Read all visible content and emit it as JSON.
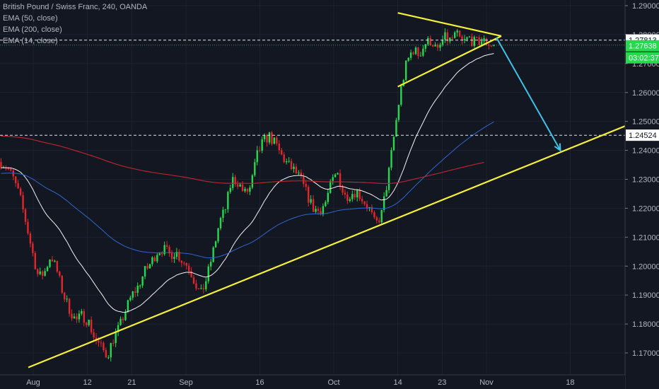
{
  "chart_data": {
    "type": "candlestick",
    "title": "British Pound / Swiss Franc, 240, OANDA",
    "indicators": [
      {
        "name": "EMA (50, close)",
        "color": "#2f6bd6"
      },
      {
        "name": "EMA (200, close)",
        "color": "#c0262d"
      },
      {
        "name": "EMA (14, close)",
        "color": "#ffffff"
      }
    ],
    "y_ticks": [
      "1.29000",
      "1.28000",
      "1.27000",
      "1.26000",
      "1.25000",
      "1.24000",
      "1.23000",
      "1.22000",
      "1.21000",
      "1.20000",
      "1.19000",
      "1.18000",
      "1.17000"
    ],
    "ylim": [
      1.165,
      1.292
    ],
    "x_ticks": [
      "Aug",
      "12",
      "21",
      "Sep",
      "16",
      "Oct",
      "14",
      "23",
      "Nov",
      "18"
    ],
    "price_labels": [
      {
        "value": "1.27813",
        "style": "white"
      },
      {
        "value": "1.27638",
        "style": "green"
      },
      {
        "value": "03:02:37",
        "style": "green"
      },
      {
        "value": "1.24524",
        "style": "white"
      }
    ],
    "horizontal_lines": [
      1.2781,
      1.2452
    ],
    "colors": {
      "background": "#131722",
      "up": "#26d94f",
      "down": "#e3262c",
      "trendline": "#f5f03a",
      "projection": "#3fc2e6",
      "grid": "#1e2230",
      "axis_text": "#b2b5be"
    },
    "price_series_daily": [
      1.236,
      1.234,
      1.23,
      1.224,
      1.215,
      1.205,
      1.196,
      1.198,
      1.204,
      1.198,
      1.19,
      1.185,
      1.181,
      1.183,
      1.181,
      1.175,
      1.172,
      1.169,
      1.175,
      1.179,
      1.185,
      1.19,
      1.193,
      1.198,
      1.201,
      1.205,
      1.206,
      1.204,
      1.205,
      1.202,
      1.2,
      1.195,
      1.19,
      1.196,
      1.205,
      1.215,
      1.22,
      1.23,
      1.229,
      1.225,
      1.227,
      1.238,
      1.243,
      1.245,
      1.242,
      1.238,
      1.235,
      1.233,
      1.23,
      1.225,
      1.22,
      1.219,
      1.222,
      1.229,
      1.232,
      1.224,
      1.225,
      1.226,
      1.223,
      1.22,
      1.214,
      1.218,
      1.23,
      1.245,
      1.26,
      1.27,
      1.275,
      1.273,
      1.277,
      1.278,
      1.274,
      1.279,
      1.278,
      1.28,
      1.277,
      1.279,
      1.277,
      1.278,
      1.277,
      1.2764
    ],
    "annotations": [
      {
        "type": "trendline",
        "points": [
          [
            "Jul 31",
            1.165
          ],
          [
            "Nov 30",
            1.249
          ]
        ]
      },
      {
        "type": "triangle-upper",
        "points": [
          [
            "Oct 14",
            1.2875
          ],
          [
            "Nov 4",
            1.2795
          ]
        ]
      },
      {
        "type": "triangle-lower",
        "points": [
          [
            "Oct 14",
            1.262
          ],
          [
            "Nov 4",
            1.2795
          ]
        ]
      },
      {
        "type": "arrow",
        "points": [
          [
            "Nov 3",
            1.279
          ],
          [
            "Nov 16",
            1.24
          ]
        ]
      }
    ]
  }
}
